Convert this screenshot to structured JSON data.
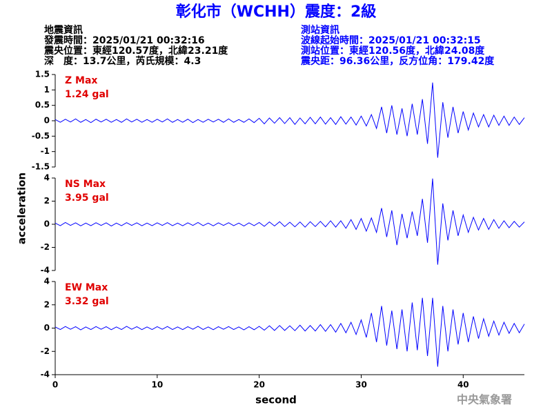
{
  "header": {
    "title": "彰化市（WCHH）震度：2級",
    "left": [
      "地震資訊",
      "發震時間：2025/01/21 00:32:16",
      "震央位置：東經120.57度，北緯23.21度",
      "深　度：13.7公里，芮氏規模：4.3"
    ],
    "right": [
      "測站資訊",
      "波線起始時間：2025/01/21 00:32:15",
      "測站位置：東經120.56度，北緯24.08度",
      "震央距：96.36公里，反方位角：179.42度"
    ]
  },
  "axis_labels": {
    "y": "acceleration",
    "x": "second"
  },
  "footer": "中央氣象署",
  "chart_data": [
    {
      "type": "line",
      "annotation": "Z Max",
      "max_label": "1.24 gal",
      "color": "#0000ff",
      "xlim": [
        0,
        46
      ],
      "ylim": [
        -1.5,
        1.5
      ],
      "yticks": [
        1.5,
        1,
        0.5,
        0,
        -0.5,
        -1,
        -1.5
      ],
      "x": [
        0,
        0.5,
        1,
        1.5,
        2,
        2.5,
        3,
        3.5,
        4,
        4.5,
        5,
        5.5,
        6,
        6.5,
        7,
        7.5,
        8,
        8.5,
        9,
        9.5,
        10,
        10.5,
        11,
        11.5,
        12,
        12.5,
        13,
        13.5,
        14,
        14.5,
        15,
        15.5,
        16,
        16.5,
        17,
        17.5,
        18,
        18.5,
        19,
        19.5,
        20,
        20.5,
        21,
        21.5,
        22,
        22.5,
        23,
        23.5,
        24,
        24.5,
        25,
        25.5,
        26,
        26.5,
        27,
        27.5,
        28,
        28.5,
        29,
        29.5,
        30,
        30.5,
        31,
        31.5,
        32,
        32.5,
        33,
        33.5,
        34,
        34.5,
        35,
        35.5,
        36,
        36.5,
        37,
        37.5,
        38,
        38.5,
        39,
        39.5,
        40,
        40.5,
        41,
        41.5,
        42,
        42.5,
        43,
        43.5,
        44,
        44.5,
        45,
        45.5,
        46
      ],
      "values": [
        0.04,
        -0.05,
        0.05,
        -0.04,
        0.06,
        -0.05,
        0.04,
        -0.06,
        0.05,
        -0.04,
        0.05,
        -0.05,
        0.04,
        -0.05,
        0.06,
        -0.04,
        0.05,
        -0.05,
        0.04,
        -0.05,
        0.05,
        -0.04,
        0.06,
        -0.05,
        0.04,
        -0.05,
        0.05,
        -0.06,
        0.04,
        -0.05,
        0.05,
        -0.04,
        0.05,
        -0.05,
        0.06,
        -0.05,
        0.04,
        -0.05,
        0.06,
        -0.06,
        0.08,
        -0.1,
        0.09,
        -0.08,
        0.1,
        -0.09,
        0.1,
        -0.12,
        0.09,
        -0.1,
        0.11,
        -0.1,
        0.12,
        -0.11,
        0.1,
        -0.12,
        0.13,
        -0.11,
        0.12,
        -0.14,
        0.15,
        -0.17,
        0.2,
        -0.25,
        0.45,
        -0.4,
        0.5,
        -0.45,
        0.4,
        -0.5,
        0.55,
        -0.45,
        0.7,
        -0.75,
        1.24,
        -1.2,
        0.6,
        -0.55,
        0.45,
        -0.4,
        0.3,
        -0.3,
        0.25,
        -0.2,
        0.2,
        -0.2,
        0.18,
        -0.15,
        0.15,
        -0.15,
        0.12,
        -0.12,
        0.1
      ]
    },
    {
      "type": "line",
      "annotation": "NS Max",
      "max_label": "3.95 gal",
      "color": "#0000ff",
      "xlim": [
        0,
        46
      ],
      "ylim": [
        -4,
        4
      ],
      "yticks": [
        4,
        2,
        0,
        -2,
        -4
      ],
      "x": [
        0,
        0.5,
        1,
        1.5,
        2,
        2.5,
        3,
        3.5,
        4,
        4.5,
        5,
        5.5,
        6,
        6.5,
        7,
        7.5,
        8,
        8.5,
        9,
        9.5,
        10,
        10.5,
        11,
        11.5,
        12,
        12.5,
        13,
        13.5,
        14,
        14.5,
        15,
        15.5,
        16,
        16.5,
        17,
        17.5,
        18,
        18.5,
        19,
        19.5,
        20,
        20.5,
        21,
        21.5,
        22,
        22.5,
        23,
        23.5,
        24,
        24.5,
        25,
        25.5,
        26,
        26.5,
        27,
        27.5,
        28,
        28.5,
        29,
        29.5,
        30,
        30.5,
        31,
        31.5,
        32,
        32.5,
        33,
        33.5,
        34,
        34.5,
        35,
        35.5,
        36,
        36.5,
        37,
        37.5,
        38,
        38.5,
        39,
        39.5,
        40,
        40.5,
        41,
        41.5,
        42,
        42.5,
        43,
        43.5,
        44,
        44.5,
        45,
        45.5,
        46
      ],
      "values": [
        0.1,
        -0.12,
        0.15,
        -0.1,
        0.12,
        -0.14,
        0.1,
        -0.12,
        0.13,
        -0.1,
        0.12,
        -0.15,
        0.1,
        -0.12,
        0.14,
        -0.1,
        0.12,
        -0.13,
        0.1,
        -0.12,
        0.12,
        -0.1,
        0.14,
        -0.12,
        0.1,
        -0.13,
        0.12,
        -0.1,
        0.15,
        -0.12,
        0.1,
        -0.14,
        0.12,
        -0.1,
        0.13,
        -0.12,
        0.1,
        -0.15,
        0.12,
        -0.12,
        0.15,
        -0.18,
        0.2,
        -0.15,
        0.22,
        -0.2,
        0.18,
        -0.22,
        0.2,
        -0.25,
        0.22,
        -0.2,
        0.25,
        -0.22,
        0.3,
        -0.25,
        0.3,
        -0.35,
        0.4,
        -0.45,
        0.5,
        -0.6,
        0.55,
        -0.7,
        1.4,
        -1.1,
        1.2,
        -1.8,
        0.9,
        -1.2,
        1.1,
        -1.0,
        2.2,
        -1.6,
        3.95,
        -3.5,
        1.8,
        -1.4,
        1.2,
        -1.0,
        0.8,
        -0.7,
        0.6,
        -0.5,
        0.5,
        -0.45,
        0.4,
        -0.35,
        0.3,
        -0.3,
        0.25,
        -0.25,
        0.2
      ]
    },
    {
      "type": "line",
      "annotation": "EW Max",
      "max_label": "3.32 gal",
      "color": "#0000ff",
      "xlim": [
        0,
        46
      ],
      "ylim": [
        -4,
        4
      ],
      "yticks": [
        4,
        2,
        0,
        -2,
        -4
      ],
      "xticks": [
        0,
        10,
        20,
        30,
        40
      ],
      "x": [
        0,
        0.5,
        1,
        1.5,
        2,
        2.5,
        3,
        3.5,
        4,
        4.5,
        5,
        5.5,
        6,
        6.5,
        7,
        7.5,
        8,
        8.5,
        9,
        9.5,
        10,
        10.5,
        11,
        11.5,
        12,
        12.5,
        13,
        13.5,
        14,
        14.5,
        15,
        15.5,
        16,
        16.5,
        17,
        17.5,
        18,
        18.5,
        19,
        19.5,
        20,
        20.5,
        21,
        21.5,
        22,
        22.5,
        23,
        23.5,
        24,
        24.5,
        25,
        25.5,
        26,
        26.5,
        27,
        27.5,
        28,
        28.5,
        29,
        29.5,
        30,
        30.5,
        31,
        31.5,
        32,
        32.5,
        33,
        33.5,
        34,
        34.5,
        35,
        35.5,
        36,
        36.5,
        37,
        37.5,
        38,
        38.5,
        39,
        39.5,
        40,
        40.5,
        41,
        41.5,
        42,
        42.5,
        43,
        43.5,
        44,
        44.5,
        45,
        45.5,
        46
      ],
      "values": [
        0.1,
        -0.12,
        0.14,
        -0.1,
        0.12,
        -0.15,
        0.1,
        -0.12,
        0.13,
        -0.1,
        0.12,
        -0.14,
        0.1,
        -0.12,
        0.15,
        -0.1,
        0.12,
        -0.13,
        0.1,
        -0.12,
        0.12,
        -0.1,
        0.14,
        -0.12,
        0.1,
        -0.13,
        0.12,
        -0.1,
        0.15,
        -0.12,
        0.1,
        -0.14,
        0.12,
        -0.1,
        0.13,
        -0.12,
        0.1,
        -0.15,
        0.12,
        -0.14,
        0.15,
        -0.18,
        0.2,
        -0.2,
        0.22,
        -0.2,
        0.2,
        -0.22,
        0.25,
        -0.25,
        0.22,
        -0.25,
        0.3,
        -0.28,
        0.3,
        -0.35,
        0.4,
        -0.4,
        0.5,
        -0.55,
        0.7,
        -0.8,
        1.3,
        -1.2,
        1.9,
        -1.5,
        1.5,
        -1.8,
        1.6,
        -2.0,
        2.2,
        -1.9,
        2.6,
        -2.4,
        2.6,
        -3.32,
        1.9,
        -2.0,
        1.6,
        -1.4,
        1.3,
        -1.2,
        1.0,
        -0.9,
        0.8,
        -0.7,
        0.6,
        -0.6,
        0.5,
        -0.45,
        0.4,
        -0.4,
        0.35
      ]
    }
  ]
}
